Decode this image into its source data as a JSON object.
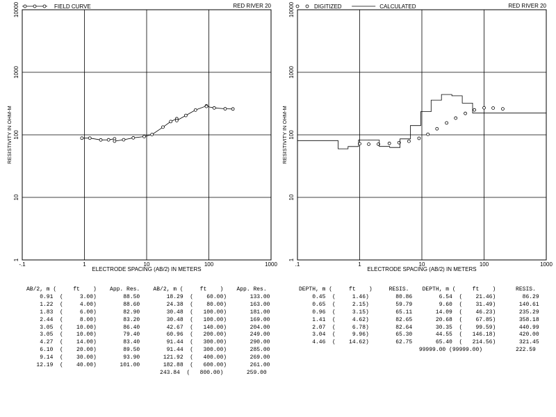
{
  "chart_data": [
    {
      "type": "line",
      "scale": "log-log",
      "location": "RED RIVER 20",
      "legend": [
        {
          "name": "FIELD CURVE",
          "marker": "circle",
          "line": true
        }
      ],
      "xlabel": "ELECTRODE SPACING (AB/2) IN METERS",
      "ylabel": "RESISTIVITY IN OHM-M",
      "xlim": [
        0.1,
        1000
      ],
      "ylim": [
        1,
        10000
      ],
      "x_ticks": [
        "-.1",
        "1",
        "10",
        "100",
        "1000"
      ],
      "y_ticks": [
        "1",
        "10",
        "100",
        "1000",
        "10000"
      ],
      "series": [
        {
          "name": "FIELD CURVE",
          "x": [
            0.91,
            1.22,
            1.83,
            2.44,
            3.05,
            3.05,
            4.27,
            6.1,
            9.14,
            12.19,
            18.29,
            24.38,
            30.48,
            30.48,
            42.67,
            60.96,
            91.44,
            91.44,
            121.92,
            182.88,
            243.84
          ],
          "y": [
            88.5,
            88.6,
            82.9,
            83.2,
            86.4,
            79.4,
            83.4,
            89.5,
            93.9,
            101.0,
            133.0,
            163.0,
            181.0,
            169.0,
            204.0,
            249.0,
            290.0,
            285.0,
            269.0,
            261.0,
            259.0
          ]
        }
      ]
    },
    {
      "type": "line",
      "scale": "log-log",
      "location": "RED RIVER 20",
      "legend": [
        {
          "name": "DIGITIZED",
          "marker": "circle",
          "line": false
        },
        {
          "name": "CALCULATED",
          "marker": "none",
          "line": true
        }
      ],
      "xlabel": "ELECTRODE SPACING (AB/2) IN METERS",
      "ylabel": "RESISTIVITY IN OHM-M",
      "xlim": [
        0.1,
        1000
      ],
      "ylim": [
        1,
        10000
      ],
      "x_ticks": [
        ".1",
        "1",
        "10",
        "100",
        "1000"
      ],
      "y_ticks": [
        "1",
        "10",
        "100",
        "1000",
        "10000"
      ],
      "series": [
        {
          "name": "DIGITIZED",
          "x": [
            1.0,
            1.4,
            2.0,
            3.0,
            4.3,
            6.2,
            9.0,
            12.5,
            17.5,
            25.0,
            35.0,
            50.0,
            70.0,
            100.0,
            140.0,
            200.0
          ],
          "y": [
            72,
            71,
            71,
            73,
            75,
            79,
            88,
            102,
            125,
            155,
            185,
            220,
            250,
            270,
            268,
            260
          ]
        },
        {
          "name": "CALCULATED",
          "depth": [
            0.0,
            0.45,
            0.65,
            0.96,
            1.41,
            2.07,
            3.04,
            4.46,
            6.54,
            9.6,
            14.09,
            20.68,
            30.35,
            44.55,
            65.4
          ],
          "resistivity": [
            80.86,
            59.79,
            65.11,
            82.65,
            82.64,
            65.3,
            62.75,
            86.29,
            140.61,
            235.29,
            358.18,
            440.99,
            420.0,
            321.45,
            222.59
          ]
        }
      ]
    }
  ],
  "tables": {
    "field": {
      "header": "AB/2, m (     ft    )    App. Res.    AB/2, m (     ft    )    App. Res.",
      "rows": [
        "    0.91  (     3.00)        88.50        18.29  (    60.00)       133.00",
        "    1.22  (     4.00)        88.60        24.38  (    80.00)       163.00",
        "    1.83  (     6.00)        82.90        30.48  (   100.00)       181.00",
        "    2.44  (     8.00)        83.20        30.48  (   100.00)       169.00",
        "    3.05  (    10.00)        86.40        42.67  (   140.00)       204.00",
        "    3.05  (    10.00)        79.40        60.96  (   200.00)       249.00",
        "    4.27  (    14.00)        83.40        91.44  (   300.00)       290.00",
        "    6.10  (    20.00)        89.50        91.44  (   300.00)       285.00",
        "    9.14  (    30.00)        93.90       121.92  (   400.00)       269.00",
        "   12.19  (    40.00)       101.00       182.88  (   600.00)       261.00",
        "                                        243.84  (   800.00)       259.00"
      ]
    },
    "model": {
      "header": "DEPTH, m (     ft    )     RESIS.    DEPTH, m (     ft    )      RESIS.",
      "rows": [
        "    0.45  (     1.46)        80.86        6.54  (    21.46)        86.29",
        "    0.65  (     2.15)        59.79        9.60  (    31.49)       140.61",
        "    0.96  (     3.15)        65.11       14.09  (    46.23)       235.29",
        "    1.41  (     4.62)        82.65       20.68  (    67.85)       358.18",
        "    2.07  (     6.78)        82.64       30.35  (    99.59)       440.99",
        "    3.04  (     9.96)        65.30       44.55  (   146.18)       420.00",
        "    4.46  (    14.62)        62.75       65.40  (   214.56)       321.45",
        "                                    99999.00 (99999.00)          222.59"
      ]
    }
  }
}
